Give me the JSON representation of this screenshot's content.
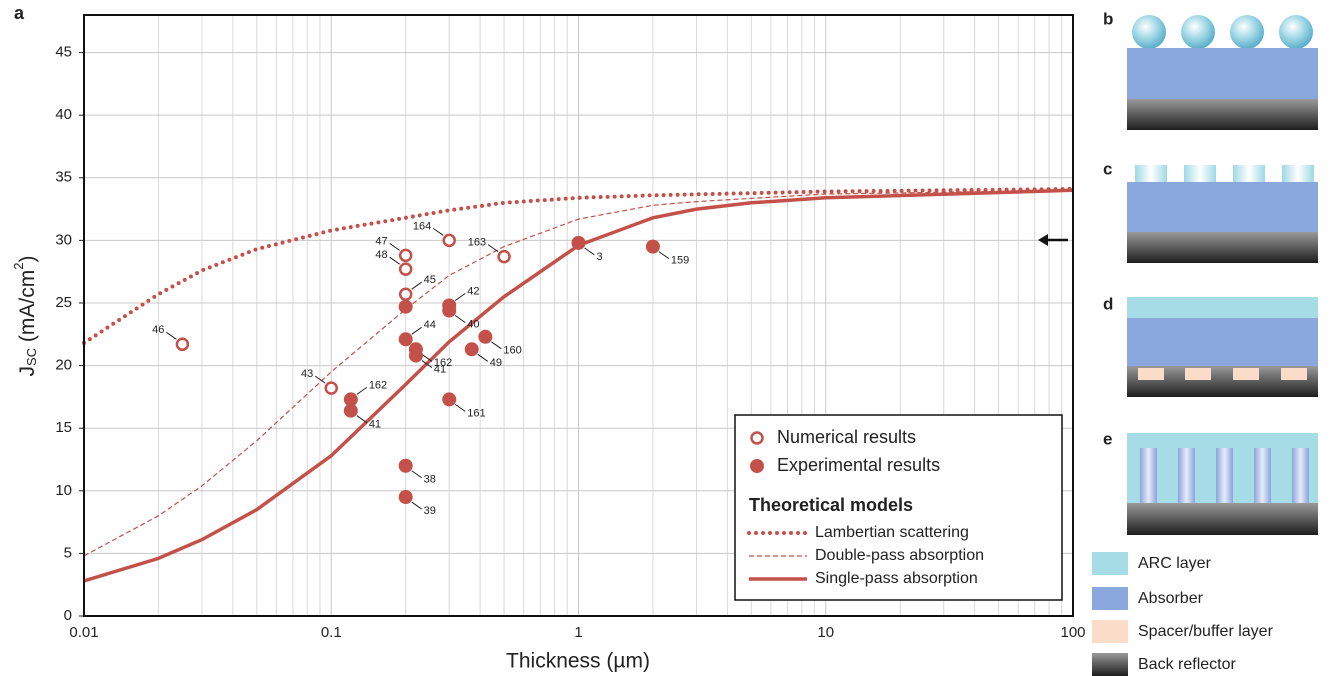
{
  "chart_data": {
    "type": "scatter",
    "panel_label": "a",
    "x_label": "Thickness (µm)",
    "y_label": {
      "symbol": "J",
      "subscript": "SC",
      "unit": " (mA/cm",
      "superscript": "2",
      "close": ")"
    },
    "xlim": [
      0.01,
      100
    ],
    "xticks": [
      0.01,
      0.1,
      1,
      10,
      100
    ],
    "log_x": true,
    "ylim": [
      0,
      48
    ],
    "yticks": [
      0,
      5,
      10,
      15,
      20,
      25,
      30,
      35,
      40,
      45
    ],
    "grid": true,
    "legend_position": "lower right",
    "legend_heading": "Theoretical models",
    "series": [
      {
        "name": "Numerical results",
        "color": "#c4504a",
        "marker": "open",
        "x": [
          0.025,
          0.1,
          0.2,
          0.2,
          0.2,
          0.3,
          0.5
        ],
        "values": [
          21.7,
          18.2,
          28.8,
          27.7,
          25.7,
          30,
          28.7
        ],
        "labels": [
          "46",
          "43",
          "47",
          "48",
          "45",
          "164",
          "163"
        ]
      },
      {
        "name": "Experimental results",
        "color": "#c4504a",
        "marker": "filled",
        "x": [
          0.2,
          0.3,
          0.3,
          0.2,
          0.22,
          0.22,
          0.37,
          0.42,
          0.12,
          0.12,
          0.3,
          0.2,
          0.2,
          1,
          2
        ],
        "values": [
          24.7,
          24.8,
          24.4,
          22.1,
          21.3,
          20.8,
          21.3,
          22.3,
          17.3,
          16.4,
          17.3,
          12,
          9.5,
          29.8,
          29.5
        ],
        "labels": [
          null,
          "42",
          "40",
          "44",
          "162",
          "41",
          "49",
          "160",
          "162",
          "41",
          "161",
          "38",
          "39",
          "3",
          "159"
        ]
      }
    ],
    "lines": [
      {
        "name": "Lambertian scattering",
        "color": "#c4504a",
        "style": "dotted",
        "x": [
          0.01,
          0.02,
          0.03,
          0.05,
          0.1,
          0.2,
          0.3,
          0.5,
          1,
          2,
          10,
          100
        ],
        "values": [
          21.8,
          25.7,
          27.6,
          29.3,
          30.8,
          31.8,
          32.4,
          33,
          33.4,
          33.6,
          33.9,
          34.1
        ]
      },
      {
        "name": "Double-pass absorption",
        "color": "#c4504a",
        "style": "dashed",
        "x": [
          0.01,
          0.02,
          0.03,
          0.05,
          0.1,
          0.2,
          0.3,
          0.5,
          1,
          2,
          3,
          10,
          100
        ],
        "values": [
          4.8,
          8,
          10.4,
          14,
          19.5,
          24.5,
          27.2,
          29.5,
          31.7,
          32.8,
          33.1,
          33.7,
          34
        ]
      },
      {
        "name": "Single-pass absorption",
        "color": "#c4504a",
        "style": "solid",
        "x": [
          0.01,
          0.02,
          0.03,
          0.05,
          0.1,
          0.2,
          0.3,
          0.5,
          1,
          2,
          3,
          5,
          10,
          100
        ],
        "values": [
          2.8,
          4.6,
          6.1,
          8.5,
          12.8,
          18.5,
          21.9,
          25.5,
          29.6,
          31.8,
          32.5,
          33,
          33.4,
          34
        ]
      }
    ]
  },
  "diagram": {
    "panels": [
      "b",
      "c",
      "d",
      "e"
    ],
    "legend": [
      "ARC layer",
      "Absorber",
      "Spacer/buffer layer",
      "Back reflector"
    ]
  }
}
